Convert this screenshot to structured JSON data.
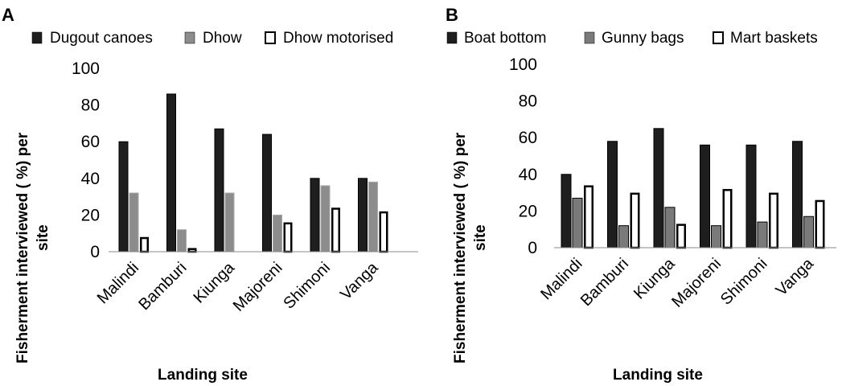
{
  "chart_data": [
    {
      "panel": "A",
      "type": "bar",
      "categories": [
        "Malindi",
        "Bamburi",
        "Kiunga",
        "Majoreni",
        "Shimoni",
        "Vanga"
      ],
      "series": [
        {
          "name": "Dugout canoes",
          "values": [
            60,
            86,
            67,
            64,
            40,
            40
          ],
          "color": "#1e1e1e"
        },
        {
          "name": "Dhow",
          "values": [
            32,
            12,
            32,
            20,
            36,
            38
          ],
          "color": "#8c8c8c"
        },
        {
          "name": "Dhow motorised",
          "values": [
            8,
            2,
            0,
            16,
            24,
            22
          ],
          "color": "#ffffff"
        }
      ],
      "ylabel_lines": [
        "Fisherment interviewed ( %) per",
        "site"
      ],
      "xlabel": "Landing site",
      "ylim": [
        0,
        100
      ],
      "yticks": [
        0,
        20,
        40,
        60,
        80,
        100
      ],
      "legend_position": "top"
    },
    {
      "panel": "B",
      "type": "bar",
      "categories": [
        "Malindi",
        "Bamburi",
        "Kiunga",
        "Majoreni",
        "Shimoni",
        "Vanga"
      ],
      "series": [
        {
          "name": "Boat bottom",
          "values": [
            40,
            58,
            65,
            56,
            56,
            58
          ],
          "color": "#1e1e1e"
        },
        {
          "name": "Gunny bags",
          "values": [
            27,
            12,
            22,
            12,
            14,
            17
          ],
          "color": "#7a7a7a"
        },
        {
          "name": "Mart baskets",
          "values": [
            34,
            30,
            13,
            32,
            30,
            26
          ],
          "color": "#ffffff"
        }
      ],
      "ylabel_lines": [
        "Fisherment interviewed ( %) per",
        "site"
      ],
      "xlabel": "Landing site",
      "ylim": [
        0,
        100
      ],
      "yticks": [
        0,
        20,
        40,
        60,
        80,
        100
      ],
      "legend_position": "top"
    }
  ]
}
